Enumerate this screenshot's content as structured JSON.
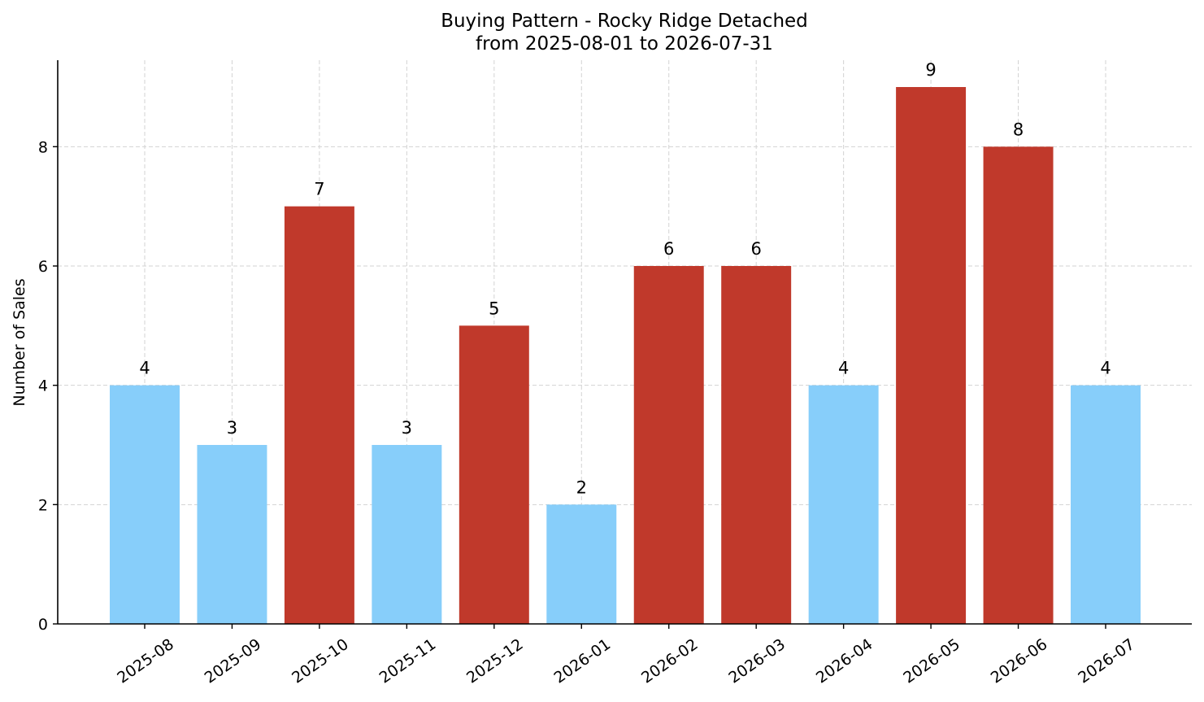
{
  "chart_data": {
    "type": "bar",
    "title": "Buying Pattern - Rocky Ridge Detached",
    "subtitle": "from 2025-08-01 to 2026-07-31",
    "xlabel": "",
    "ylabel": "Number of Sales",
    "categories": [
      "2025-08",
      "2025-09",
      "2025-10",
      "2025-11",
      "2025-12",
      "2026-01",
      "2026-02",
      "2026-03",
      "2026-04",
      "2026-05",
      "2026-06",
      "2026-07"
    ],
    "values": [
      4,
      3,
      7,
      3,
      5,
      2,
      6,
      6,
      4,
      9,
      8,
      4
    ],
    "bar_colors": [
      "#87CEFA",
      "#87CEFA",
      "#C0392B",
      "#87CEFA",
      "#C0392B",
      "#87CEFA",
      "#C0392B",
      "#C0392B",
      "#87CEFA",
      "#C0392B",
      "#C0392B",
      "#87CEFA"
    ],
    "ylim": [
      0,
      9.45
    ],
    "yticks": [
      0,
      2,
      4,
      6,
      8
    ],
    "grid": true,
    "data_labels": true
  }
}
